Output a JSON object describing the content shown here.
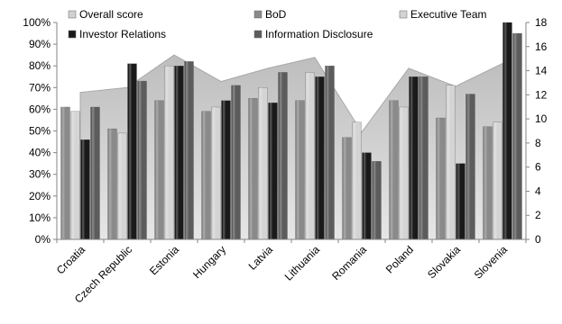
{
  "chart_data": {
    "type": "bar",
    "categories": [
      "Croatia",
      "Czech Republic",
      "Estonia",
      "Hungary",
      "Latvia",
      "Lithuania",
      "Romania",
      "Poland",
      "Slovakia",
      "Slovenia"
    ],
    "y_left": {
      "ylim": [
        0,
        100
      ],
      "ticks": [
        "0%",
        "10%",
        "20%",
        "30%",
        "40%",
        "50%",
        "60%",
        "70%",
        "80%",
        "90%",
        "100%"
      ]
    },
    "y_right": {
      "ylim": [
        0,
        18
      ],
      "ticks": [
        "0",
        "2",
        "4",
        "6",
        "8",
        "10",
        "12",
        "14",
        "16",
        "18"
      ]
    },
    "area_series": {
      "name": "Overall score",
      "axis": "right",
      "color": "#c8c8c8",
      "values": [
        12.2,
        12.6,
        15.3,
        13.1,
        14.2,
        15.1,
        8.9,
        14.2,
        12.7,
        14.6
      ]
    },
    "bar_series": [
      {
        "name": "BoD",
        "axis": "left",
        "color": "#8a8a8a",
        "values": [
          61,
          51,
          64,
          59,
          65,
          64,
          47,
          64,
          56,
          52
        ]
      },
      {
        "name": "Executive Team",
        "axis": "left",
        "color": "#d4d4d4",
        "values": [
          59,
          49,
          80,
          61,
          70,
          77,
          54,
          61,
          71,
          54
        ]
      },
      {
        "name": "Investor Relations",
        "axis": "left",
        "color": "#1a1a1a",
        "values": [
          46,
          81,
          80,
          64,
          63,
          75,
          40,
          75,
          35,
          100
        ]
      },
      {
        "name": "Information Disclosure",
        "axis": "left",
        "color": "#5c5c5c",
        "values": [
          61,
          73,
          82,
          71,
          77,
          80,
          36,
          75,
          67,
          95
        ]
      }
    ],
    "legend": {
      "position": "top",
      "entries": [
        {
          "name": "Overall score",
          "color": "#d0d0d0"
        },
        {
          "name": "BoD",
          "color": "#8a8a8a"
        },
        {
          "name": "Executive Team",
          "color": "#d4d4d4"
        },
        {
          "name": "Investor Relations",
          "color": "#1a1a1a"
        },
        {
          "name": "Information Disclosure",
          "color": "#5c5c5c"
        }
      ]
    },
    "grid": false
  }
}
